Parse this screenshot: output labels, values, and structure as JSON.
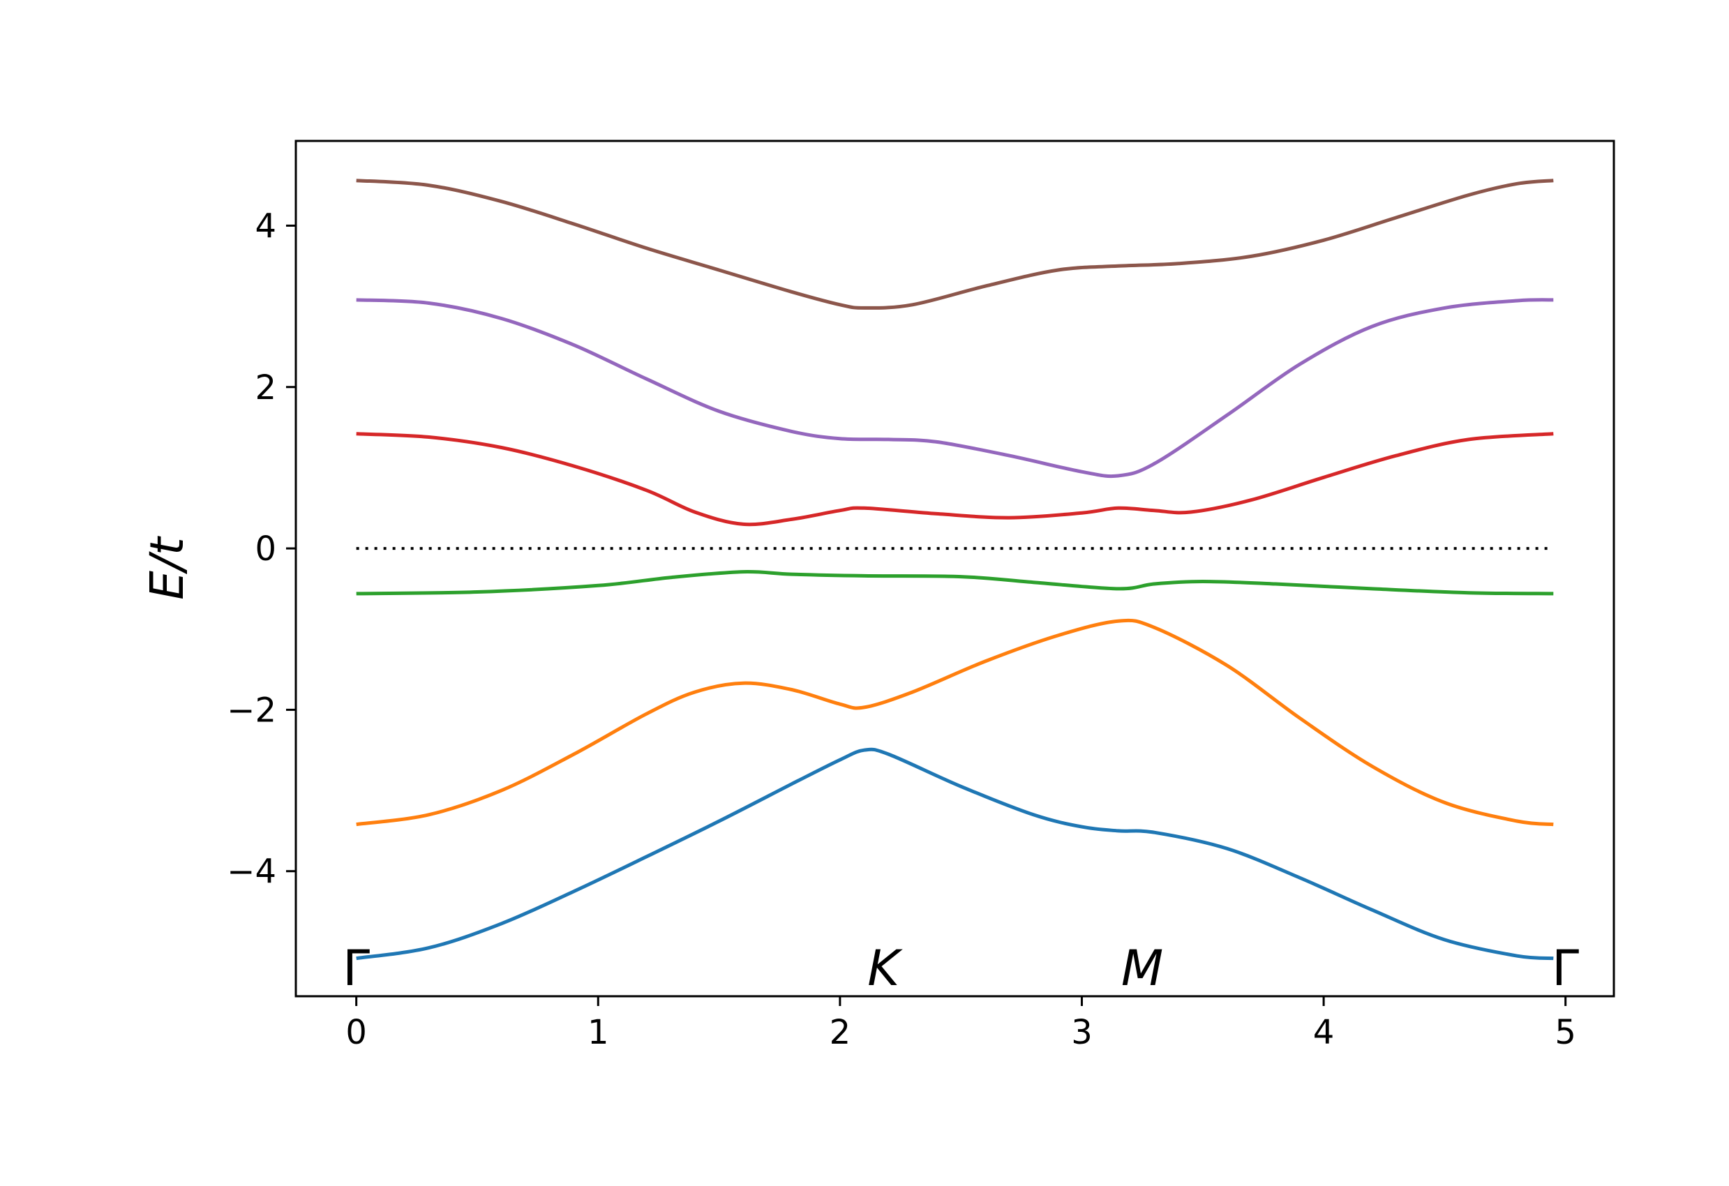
{
  "chart_data": {
    "type": "line",
    "xlabel": "",
    "ylabel": "E/t",
    "xlim": [
      -0.25,
      5.2
    ],
    "ylim": [
      -5.55,
      5.05
    ],
    "grid": false,
    "x_ticks": [
      0,
      1,
      2,
      3,
      4,
      5
    ],
    "x_tick_labels": [
      "0",
      "1",
      "2",
      "3",
      "4",
      "5"
    ],
    "y_ticks": [
      -4,
      -2,
      0,
      2,
      4
    ],
    "y_tick_labels": [
      "−4",
      "−2",
      "0",
      "2",
      "4"
    ],
    "kpoint_labels": [
      {
        "x": 0.0,
        "text": "Γ",
        "italic": false
      },
      {
        "x": 2.18,
        "text": "K",
        "italic": true
      },
      {
        "x": 3.25,
        "text": "M",
        "italic": true
      },
      {
        "x": 5.0,
        "text": "Γ",
        "italic": false
      }
    ],
    "reference_line": {
      "y": 0,
      "x": [
        0,
        4.95
      ],
      "style": "dotted",
      "color": "#000000"
    },
    "series": [
      {
        "color": "#1f77b4",
        "x": [
          0,
          0.3,
          0.6,
          0.9,
          1.2,
          1.5,
          1.8,
          2.0,
          2.1,
          2.2,
          2.5,
          2.8,
          3.0,
          3.15,
          3.3,
          3.6,
          3.9,
          4.2,
          4.5,
          4.8,
          4.95
        ],
        "y": [
          -5.08,
          -4.95,
          -4.65,
          -4.25,
          -3.82,
          -3.38,
          -2.92,
          -2.62,
          -2.5,
          -2.55,
          -2.95,
          -3.3,
          -3.45,
          -3.5,
          -3.52,
          -3.72,
          -4.08,
          -4.48,
          -4.85,
          -5.05,
          -5.08
        ]
      },
      {
        "color": "#ff7f0e",
        "x": [
          0,
          0.3,
          0.6,
          0.9,
          1.2,
          1.4,
          1.6,
          1.8,
          2.0,
          2.1,
          2.3,
          2.6,
          2.9,
          3.15,
          3.3,
          3.6,
          3.9,
          4.2,
          4.5,
          4.8,
          4.95
        ],
        "y": [
          -3.42,
          -3.3,
          -3.0,
          -2.55,
          -2.05,
          -1.78,
          -1.67,
          -1.75,
          -1.93,
          -1.97,
          -1.78,
          -1.4,
          -1.08,
          -0.9,
          -0.98,
          -1.45,
          -2.1,
          -2.7,
          -3.15,
          -3.38,
          -3.42
        ]
      },
      {
        "color": "#2ca02c",
        "x": [
          0,
          0.5,
          1.0,
          1.3,
          1.6,
          1.8,
          2.1,
          2.5,
          2.8,
          3.15,
          3.3,
          3.5,
          3.8,
          4.2,
          4.6,
          4.95
        ],
        "y": [
          -0.56,
          -0.54,
          -0.46,
          -0.36,
          -0.29,
          -0.32,
          -0.34,
          -0.35,
          -0.42,
          -0.5,
          -0.44,
          -0.41,
          -0.44,
          -0.5,
          -0.55,
          -0.56
        ]
      },
      {
        "color": "#d62728",
        "x": [
          0,
          0.3,
          0.6,
          0.9,
          1.2,
          1.4,
          1.6,
          1.8,
          2.0,
          2.1,
          2.4,
          2.7,
          3.0,
          3.15,
          3.3,
          3.45,
          3.7,
          4.0,
          4.3,
          4.6,
          4.95
        ],
        "y": [
          1.42,
          1.38,
          1.25,
          1.02,
          0.72,
          0.45,
          0.3,
          0.36,
          0.47,
          0.5,
          0.43,
          0.38,
          0.44,
          0.5,
          0.47,
          0.45,
          0.6,
          0.88,
          1.15,
          1.35,
          1.42
        ]
      },
      {
        "color": "#9467bd",
        "x": [
          0,
          0.3,
          0.6,
          0.9,
          1.2,
          1.5,
          1.8,
          2.0,
          2.2,
          2.4,
          2.7,
          3.0,
          3.15,
          3.3,
          3.6,
          3.9,
          4.2,
          4.5,
          4.8,
          4.95
        ],
        "y": [
          3.08,
          3.04,
          2.85,
          2.52,
          2.1,
          1.7,
          1.45,
          1.36,
          1.35,
          1.32,
          1.15,
          0.95,
          0.9,
          1.05,
          1.65,
          2.28,
          2.75,
          2.98,
          3.07,
          3.08
        ]
      },
      {
        "color": "#8c564b",
        "x": [
          0,
          0.3,
          0.6,
          0.9,
          1.2,
          1.5,
          1.8,
          2.0,
          2.1,
          2.3,
          2.6,
          2.9,
          3.15,
          3.4,
          3.7,
          4.0,
          4.3,
          4.6,
          4.8,
          4.95
        ],
        "y": [
          4.56,
          4.5,
          4.3,
          4.02,
          3.72,
          3.45,
          3.18,
          3.02,
          2.98,
          3.02,
          3.25,
          3.45,
          3.5,
          3.53,
          3.62,
          3.82,
          4.1,
          4.38,
          4.52,
          4.56
        ]
      }
    ]
  }
}
